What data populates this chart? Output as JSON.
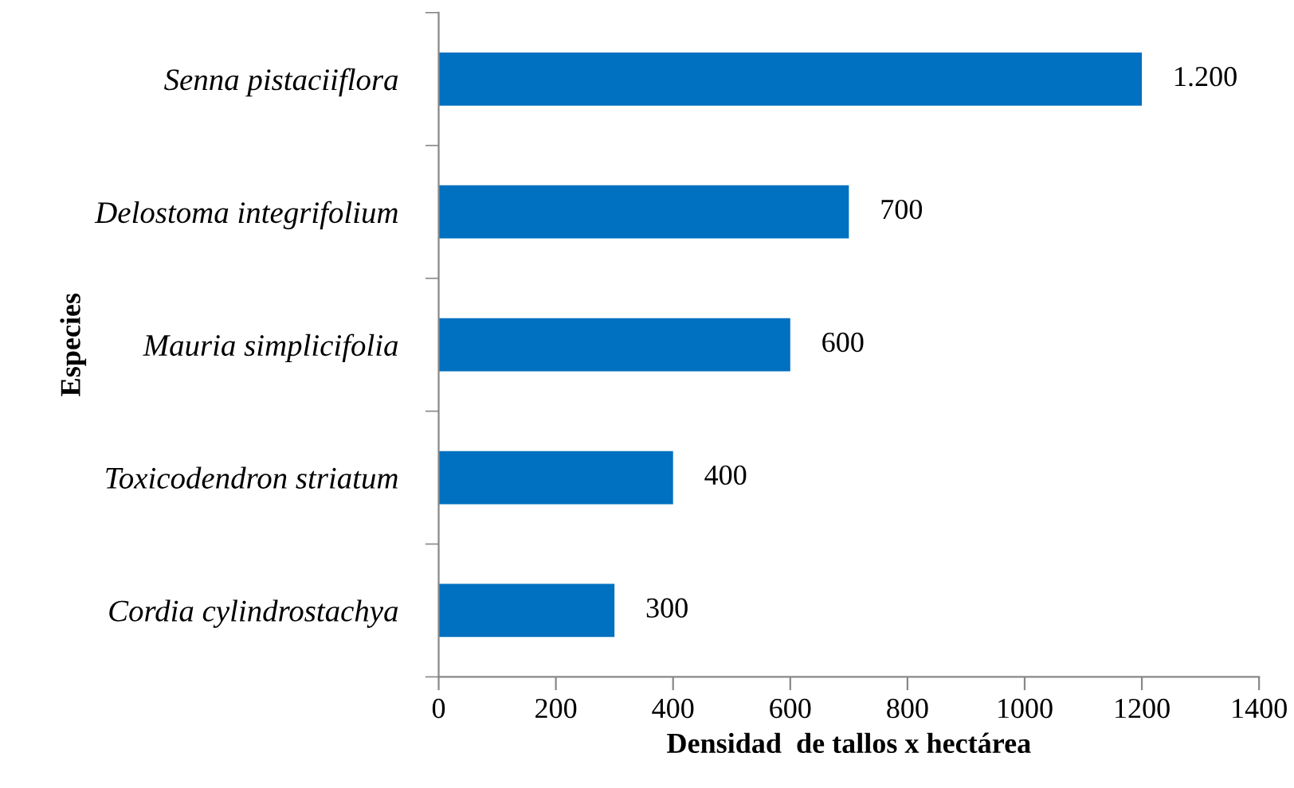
{
  "chart_data": {
    "type": "bar",
    "orientation": "horizontal",
    "xlabel": "Densidad  de tallos x hectárea",
    "ylabel": "Especies",
    "categories": [
      "Senna pistaciiflora",
      "Delostoma integrifolium",
      "Mauria simplicifolia",
      "Toxicodendron striatum",
      "Cordia cylindrostachya"
    ],
    "values": [
      1200,
      700,
      600,
      400,
      300
    ],
    "value_labels": [
      "1.200",
      "700",
      "600",
      "400",
      "300"
    ],
    "color": "#0070c0",
    "xlim": [
      0,
      1400
    ],
    "xticks": [
      0,
      200,
      400,
      600,
      800,
      1000,
      1200,
      1400
    ],
    "grid": false,
    "legend": false
  }
}
